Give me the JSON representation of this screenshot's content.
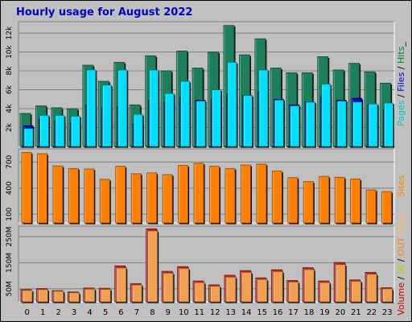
{
  "chart_data": {
    "title": "Hourly usage for August 2022",
    "type": "bar",
    "hours": [
      "0",
      "1",
      "2",
      "3",
      "4",
      "5",
      "6",
      "7",
      "8",
      "9",
      "10",
      "11",
      "12",
      "13",
      "14",
      "15",
      "16",
      "17",
      "18",
      "19",
      "20",
      "21",
      "22",
      "23"
    ],
    "panels": [
      {
        "id": "hits",
        "yticks": [
          "2k",
          "4k",
          "6k",
          "8k",
          "10k",
          "12k"
        ],
        "ylim": [
          0,
          13200
        ],
        "side_labels": [
          {
            "text": "Pages",
            "color": "#00c8c8"
          },
          {
            "text": " / ",
            "color": "#000000"
          },
          {
            "text": "Files",
            "color": "#0000c8"
          },
          {
            "text": " / ",
            "color": "#000000"
          },
          {
            "text": "Hits",
            "color": "#008040"
          },
          {
            "text": "_",
            "color": "#000000"
          }
        ],
        "series": [
          {
            "name": "Hits",
            "color": "#1b7f5b",
            "values": [
              3500,
              4300,
              4100,
              4000,
              8600,
              6900,
              8900,
              4400,
              9600,
              8000,
              10100,
              8300,
              10000,
              12800,
              9700,
              11400,
              8300,
              7800,
              7800,
              9500,
              8100,
              8800,
              7900,
              6700
            ]
          },
          {
            "name": "Files",
            "color": "#0000c8",
            "values": [
              2200,
              2900,
              2700,
              2500,
              4400,
              4100,
              4200,
              2400,
              4900,
              4700,
              5200,
              4900,
              5000,
              5600,
              5400,
              5800,
              5000,
              4400,
              4700,
              5300,
              4900,
              5100,
              4400,
              3900
            ]
          },
          {
            "name": "Pages",
            "color": "#00dfff",
            "values": [
              1900,
              3300,
              3300,
              3200,
              8100,
              6500,
              8100,
              3400,
              8100,
              5600,
              6900,
              4800,
              6000,
              8900,
              5400,
              8100,
              4900,
              4300,
              4700,
              6600,
              4800,
              4700,
              4500,
              4600
            ]
          }
        ]
      },
      {
        "id": "sites",
        "yticks": [
          "100",
          "400",
          "700"
        ],
        "ylim": [
          0,
          850
        ],
        "side_labels": [
          {
            "text": "Sites",
            "color": "#ff8000"
          }
        ],
        "series": [
          {
            "name": "Sites",
            "color": "#ff8000",
            "values": [
              810,
              795,
              655,
              625,
              620,
              500,
              650,
              565,
              575,
              555,
              660,
              685,
              650,
              625,
              665,
              675,
              595,
              520,
              475,
              535,
              525,
              505,
              380,
              360
            ]
          }
        ]
      },
      {
        "id": "volume",
        "yticks": [
          "50M",
          "150M",
          "250M"
        ],
        "ylim": [
          0,
          290
        ],
        "side_labels": [
          {
            "text": "Volume",
            "color": "#c80000"
          },
          {
            "text": " / ",
            "color": "#000000"
          },
          {
            "text": "IN",
            "color": "#c8c800"
          },
          {
            "text": " / ",
            "color": "#000000"
          },
          {
            "text": "OUT",
            "color": "#ff8000"
          },
          {
            "text": " ",
            "color": "#000000"
          },
          {
            "text": "Sites",
            "color": "#ffb466"
          }
        ],
        "series": [
          {
            "name": "Volume",
            "color": "#d41c1c",
            "values": [
              47,
              51,
              43,
              38,
              53,
              52,
              138,
              70,
              280,
              117,
              135,
              80,
              65,
              102,
              120,
              92,
              123,
              82,
              131,
              80,
              151,
              84,
              113,
              54
            ]
          },
          {
            "name": "Out",
            "color": "#f0a050",
            "values": [
              44,
              47,
              41,
              35,
              49,
              48,
              130,
              65,
              272,
              110,
              128,
              74,
              60,
              95,
              113,
              86,
              116,
              76,
              124,
              74,
              143,
              79,
              106,
              50
            ]
          }
        ]
      }
    ]
  }
}
